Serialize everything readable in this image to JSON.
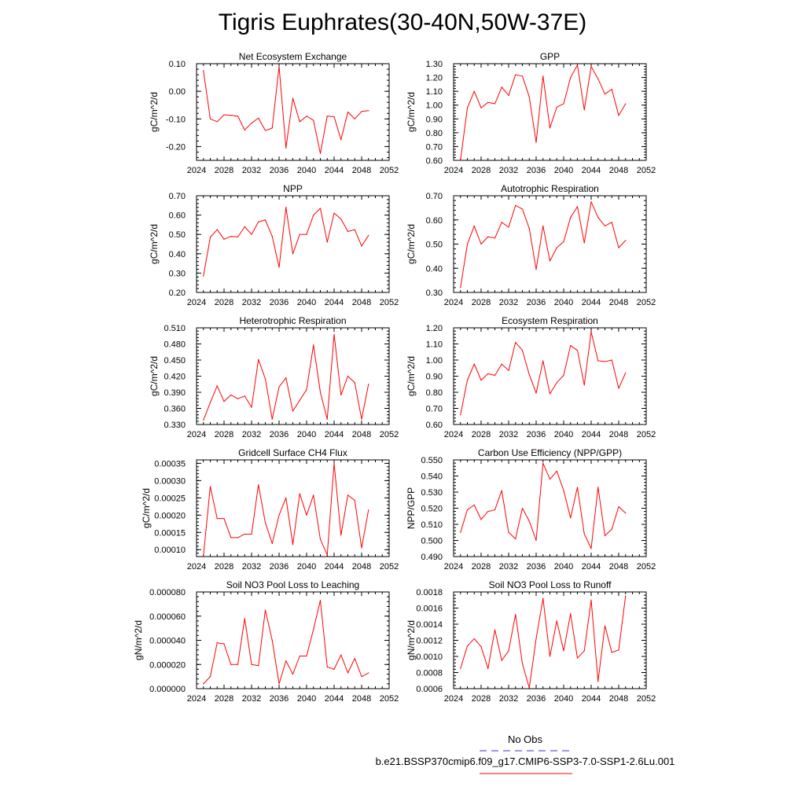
{
  "figure": {
    "title": "Tigris Euphrates(30-40N,50W-37E)",
    "legend": [
      {
        "label": "No Obs",
        "color": "#3333cc",
        "dash": true
      },
      {
        "label": "b.e21.BSSP370cmip6.f09_g17.CMIP6-SSP3-7.0-SSP1-2.6Lu.001",
        "color": "#ff0000",
        "dash": false
      }
    ]
  },
  "chart_data": [
    {
      "type": "line",
      "title": "Net Ecosystem Exchange",
      "ylabel": "gC/m^2/d",
      "xlim": [
        2024,
        2052
      ],
      "ylim": [
        -0.25,
        0.1
      ],
      "xticks": [
        "2024",
        "2028",
        "2032",
        "2036",
        "2040",
        "2044",
        "2048",
        "2052"
      ],
      "yticks": [
        "-0.20",
        "-0.10",
        "0.00",
        "0.10"
      ],
      "color": "#ff0000",
      "x": [
        2025,
        2026,
        2027,
        2028,
        2029,
        2030,
        2031,
        2032,
        2033,
        2034,
        2035,
        2036,
        2037,
        2038,
        2039,
        2040,
        2041,
        2042,
        2043,
        2044,
        2045,
        2046,
        2047,
        2048,
        2049
      ],
      "y": [
        0.075,
        -0.1,
        -0.11,
        -0.085,
        -0.087,
        -0.09,
        -0.14,
        -0.115,
        -0.097,
        -0.142,
        -0.133,
        0.09,
        -0.205,
        -0.025,
        -0.11,
        -0.09,
        -0.105,
        -0.225,
        -0.09,
        -0.092,
        -0.175,
        -0.075,
        -0.1,
        -0.073,
        -0.07
      ]
    },
    {
      "type": "line",
      "title": "GPP",
      "ylabel": "gC/m^2/d",
      "xlim": [
        2024,
        2052
      ],
      "ylim": [
        0.6,
        1.3
      ],
      "xticks": [
        "2024",
        "2028",
        "2032",
        "2036",
        "2040",
        "2044",
        "2048",
        "2052"
      ],
      "yticks": [
        "0.60",
        "0.70",
        "0.80",
        "0.90",
        "1.00",
        "1.10",
        "1.20",
        "1.30"
      ],
      "color": "#ff0000",
      "x": [
        2025,
        2026,
        2027,
        2028,
        2029,
        2030,
        2031,
        2032,
        2033,
        2034,
        2035,
        2036,
        2037,
        2038,
        2039,
        2040,
        2041,
        2042,
        2043,
        2044,
        2045,
        2046,
        2047,
        2048,
        2049
      ],
      "y": [
        0.6,
        0.98,
        1.1,
        0.98,
        1.02,
        1.01,
        1.13,
        1.07,
        1.22,
        1.21,
        1.06,
        0.73,
        1.21,
        0.835,
        0.985,
        1.01,
        1.2,
        1.29,
        0.965,
        1.28,
        1.19,
        1.08,
        1.115,
        0.925,
        1.01
      ]
    },
    {
      "type": "line",
      "title": "NPP",
      "ylabel": "gC/m^2/d",
      "xlim": [
        2024,
        2052
      ],
      "ylim": [
        0.2,
        0.7
      ],
      "xticks": [
        "2024",
        "2028",
        "2032",
        "2036",
        "2040",
        "2044",
        "2048",
        "2052"
      ],
      "yticks": [
        "0.20",
        "0.30",
        "0.40",
        "0.50",
        "0.60",
        "0.70"
      ],
      "color": "#ff0000",
      "x": [
        2025,
        2026,
        2027,
        2028,
        2029,
        2030,
        2031,
        2032,
        2033,
        2034,
        2035,
        2036,
        2037,
        2038,
        2039,
        2040,
        2041,
        2042,
        2043,
        2044,
        2045,
        2046,
        2047,
        2048,
        2049
      ],
      "y": [
        0.285,
        0.485,
        0.525,
        0.475,
        0.49,
        0.487,
        0.54,
        0.5,
        0.565,
        0.575,
        0.49,
        0.33,
        0.64,
        0.4,
        0.5,
        0.5,
        0.6,
        0.635,
        0.46,
        0.61,
        0.58,
        0.515,
        0.525,
        0.44,
        0.495
      ]
    },
    {
      "type": "line",
      "title": "Autotrophic Respiration",
      "ylabel": "gC/m^2/d",
      "xlim": [
        2024,
        2052
      ],
      "ylim": [
        0.3,
        0.7
      ],
      "xticks": [
        "2024",
        "2028",
        "2032",
        "2036",
        "2040",
        "2044",
        "2048",
        "2052"
      ],
      "yticks": [
        "0.30",
        "0.40",
        "0.50",
        "0.60",
        "0.70"
      ],
      "color": "#ff0000",
      "x": [
        2025,
        2026,
        2027,
        2028,
        2029,
        2030,
        2031,
        2032,
        2033,
        2034,
        2035,
        2036,
        2037,
        2038,
        2039,
        2040,
        2041,
        2042,
        2043,
        2044,
        2045,
        2046,
        2047,
        2048,
        2049
      ],
      "y": [
        0.32,
        0.5,
        0.575,
        0.5,
        0.53,
        0.525,
        0.59,
        0.57,
        0.66,
        0.645,
        0.565,
        0.395,
        0.575,
        0.43,
        0.485,
        0.51,
        0.61,
        0.655,
        0.505,
        0.675,
        0.61,
        0.575,
        0.59,
        0.485,
        0.515
      ]
    },
    {
      "type": "line",
      "title": "Heterotrophic Respiration",
      "ylabel": "gC/m^2/d",
      "xlim": [
        2024,
        2052
      ],
      "ylim": [
        0.33,
        0.51
      ],
      "xticks": [
        "2024",
        "2028",
        "2032",
        "2036",
        "2040",
        "2044",
        "2048",
        "2052"
      ],
      "yticks": [
        "0.330",
        "0.360",
        "0.390",
        "0.420",
        "0.450",
        "0.480",
        "0.510"
      ],
      "color": "#ff0000",
      "x": [
        2025,
        2026,
        2027,
        2028,
        2029,
        2030,
        2031,
        2032,
        2033,
        2034,
        2035,
        2036,
        2037,
        2038,
        2039,
        2040,
        2041,
        2042,
        2043,
        2044,
        2045,
        2046,
        2047,
        2048,
        2049
      ],
      "y": [
        0.338,
        0.371,
        0.402,
        0.373,
        0.385,
        0.378,
        0.383,
        0.362,
        0.451,
        0.415,
        0.34,
        0.4,
        0.417,
        0.355,
        0.375,
        0.395,
        0.478,
        0.39,
        0.34,
        0.498,
        0.385,
        0.42,
        0.408,
        0.34,
        0.405
      ]
    },
    {
      "type": "line",
      "title": "Ecosystem Respiration",
      "ylabel": "gC/m^2/d",
      "xlim": [
        2024,
        2052
      ],
      "ylim": [
        0.6,
        1.2
      ],
      "xticks": [
        "2024",
        "2028",
        "2032",
        "2036",
        "2040",
        "2044",
        "2048",
        "2052"
      ],
      "yticks": [
        "0.60",
        "0.70",
        "0.80",
        "0.90",
        "1.00",
        "1.10",
        "1.20"
      ],
      "color": "#ff0000",
      "x": [
        2025,
        2026,
        2027,
        2028,
        2029,
        2030,
        2031,
        2032,
        2033,
        2034,
        2035,
        2036,
        2037,
        2038,
        2039,
        2040,
        2041,
        2042,
        2043,
        2044,
        2045,
        2046,
        2047,
        2048,
        2049
      ],
      "y": [
        0.66,
        0.875,
        0.975,
        0.875,
        0.915,
        0.905,
        0.975,
        0.935,
        1.11,
        1.06,
        0.91,
        0.795,
        0.995,
        0.79,
        0.86,
        0.905,
        1.09,
        1.06,
        0.845,
        1.175,
        0.995,
        0.99,
        1.0,
        0.825,
        0.92
      ]
    },
    {
      "type": "line",
      "title": "Gridcell Surface CH4 Flux",
      "ylabel": "gC/m^2/d",
      "xlim": [
        2024,
        2052
      ],
      "ylim": [
        8e-05,
        0.00036
      ],
      "xticks": [
        "2024",
        "2028",
        "2032",
        "2036",
        "2040",
        "2044",
        "2048",
        "2052"
      ],
      "yticks": [
        "0.00010",
        "0.00015",
        "0.00020",
        "0.00025",
        "0.00030",
        "0.00035"
      ],
      "color": "#ff0000",
      "x": [
        2025,
        2026,
        2027,
        2028,
        2029,
        2030,
        2031,
        2032,
        2033,
        2034,
        2035,
        2036,
        2037,
        2038,
        2039,
        2040,
        2041,
        2042,
        2043,
        2044,
        2045,
        2046,
        2047,
        2048,
        2049
      ],
      "y": [
        8.2e-05,
        0.000283,
        0.00019,
        0.00019,
        0.000135,
        0.000135,
        0.000145,
        0.000145,
        0.000288,
        0.000178,
        0.000118,
        0.0002,
        0.00025,
        0.000115,
        0.000262,
        0.0002,
        0.000258,
        0.00013,
        8.5e-05,
        0.00035,
        0.000142,
        0.000258,
        0.000243,
        0.000105,
        0.000215
      ]
    },
    {
      "type": "line",
      "title": "Carbon Use Efficiency (NPP/GPP)",
      "ylabel": "NPP/GPP",
      "xlim": [
        2024,
        2052
      ],
      "ylim": [
        0.49,
        0.55
      ],
      "xticks": [
        "2024",
        "2028",
        "2032",
        "2036",
        "2040",
        "2044",
        "2048",
        "2052"
      ],
      "yticks": [
        "0.490",
        "0.500",
        "0.510",
        "0.520",
        "0.530",
        "0.540",
        "0.550"
      ],
      "color": "#ff0000",
      "x": [
        2025,
        2026,
        2027,
        2028,
        2029,
        2030,
        2031,
        2032,
        2033,
        2034,
        2035,
        2036,
        2037,
        2038,
        2039,
        2040,
        2041,
        2042,
        2043,
        2044,
        2045,
        2046,
        2047,
        2048,
        2049
      ],
      "y": [
        0.505,
        0.519,
        0.522,
        0.513,
        0.518,
        0.519,
        0.531,
        0.505,
        0.501,
        0.52,
        0.512,
        0.5,
        0.548,
        0.538,
        0.543,
        0.531,
        0.514,
        0.533,
        0.504,
        0.495,
        0.533,
        0.503,
        0.507,
        0.521,
        0.517
      ]
    },
    {
      "type": "line",
      "title": "Soil NO3 Pool Loss to Leaching",
      "ylabel": "gN/m^2/d",
      "xlim": [
        2024,
        2052
      ],
      "ylim": [
        0,
        8e-05
      ],
      "xticks": [
        "2024",
        "2028",
        "2032",
        "2036",
        "2040",
        "2044",
        "2048",
        "2052"
      ],
      "yticks": [
        "0.000000",
        "0.000020",
        "0.000040",
        "0.000060",
        "0.000080"
      ],
      "color": "#ff0000",
      "x": [
        2025,
        2026,
        2027,
        2028,
        2029,
        2030,
        2031,
        2032,
        2033,
        2034,
        2035,
        2036,
        2037,
        2038,
        2039,
        2040,
        2041,
        2042,
        2043,
        2044,
        2045,
        2046,
        2047,
        2048,
        2049
      ],
      "y": [
        4e-06,
        1e-05,
        3.8e-05,
        3.7e-05,
        2e-05,
        2e-05,
        5.8e-05,
        2e-05,
        1.9e-05,
        6.5e-05,
        4e-05,
        4e-06,
        2.3e-05,
        1.2e-05,
        2.7e-05,
        2.7e-05,
        4.9e-05,
        7.3e-05,
        1.8e-05,
        1.6e-05,
        2.8e-05,
        1.3e-05,
        2.5e-05,
        1e-05,
        1.3e-05
      ]
    },
    {
      "type": "line",
      "title": "Soil NO3 Pool Loss to Runoff",
      "ylabel": "gN/m^2/d",
      "xlim": [
        2024,
        2052
      ],
      "ylim": [
        0.0006,
        0.0018
      ],
      "xticks": [
        "2024",
        "2028",
        "2032",
        "2036",
        "2040",
        "2044",
        "2048",
        "2052"
      ],
      "yticks": [
        "0.0006",
        "0.0008",
        "0.0010",
        "0.0012",
        "0.0014",
        "0.0016",
        "0.0018"
      ],
      "color": "#ff0000",
      "x": [
        2025,
        2026,
        2027,
        2028,
        2029,
        2030,
        2031,
        2032,
        2033,
        2034,
        2035,
        2036,
        2037,
        2038,
        2039,
        2040,
        2041,
        2042,
        2043,
        2044,
        2045,
        2046,
        2047,
        2048,
        2049
      ],
      "y": [
        0.00085,
        0.00113,
        0.00122,
        0.00112,
        0.00085,
        0.00133,
        0.00095,
        0.00107,
        0.00152,
        0.00091,
        0.00061,
        0.00122,
        0.00172,
        0.001,
        0.00144,
        0.00107,
        0.00153,
        0.00098,
        0.00107,
        0.0017,
        0.00069,
        0.00138,
        0.00105,
        0.00108,
        0.00175
      ]
    }
  ]
}
